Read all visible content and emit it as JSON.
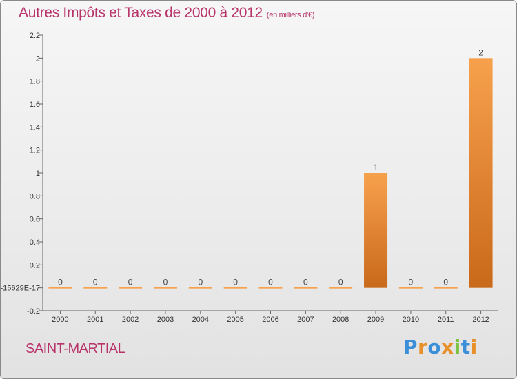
{
  "title": "Autres Impôts et Taxes de 2000 à 2012",
  "subtitle": "(en milliers d'€)",
  "commune": "SAINT-MARTIAL",
  "logo": {
    "letters": [
      "P",
      "r",
      "o",
      "x",
      "i",
      "t",
      "i"
    ],
    "colors": [
      "#3a8fd8",
      "#e8912a",
      "#3a8fd8",
      "#e8912a",
      "#7cc242",
      "#3a8fd8",
      "#e8912a"
    ]
  },
  "colors": {
    "bar_light": "#f7a14d",
    "bar_dark": "#c9691a",
    "title": "#b8336a"
  },
  "chart_data": {
    "type": "bar",
    "categories": [
      "2000",
      "2001",
      "2002",
      "2003",
      "2004",
      "2005",
      "2006",
      "2007",
      "2008",
      "2009",
      "2010",
      "2011",
      "2012"
    ],
    "values": [
      0,
      0,
      0,
      0,
      0,
      0,
      0,
      0,
      0,
      1,
      0,
      0,
      2
    ],
    "data_labels": [
      "0",
      "0",
      "0",
      "0",
      "0",
      "0",
      "0",
      "0",
      "0",
      "1",
      "0",
      "0",
      "2"
    ],
    "ylim": [
      -0.2,
      2.2
    ],
    "yticks": [
      -0.2,
      0,
      0.2,
      0.4,
      0.6,
      0.8,
      1,
      1.2,
      1.4,
      1.6,
      1.8,
      2,
      2.2
    ],
    "ytick_labels": [
      "-0.2",
      "-15629E-17",
      "0.2",
      "0.4",
      "0.6",
      "0.8",
      "1",
      "1.2",
      "1.4",
      "1.6",
      "1.8",
      "2",
      "2.2"
    ],
    "grid": false,
    "legend": "none"
  }
}
